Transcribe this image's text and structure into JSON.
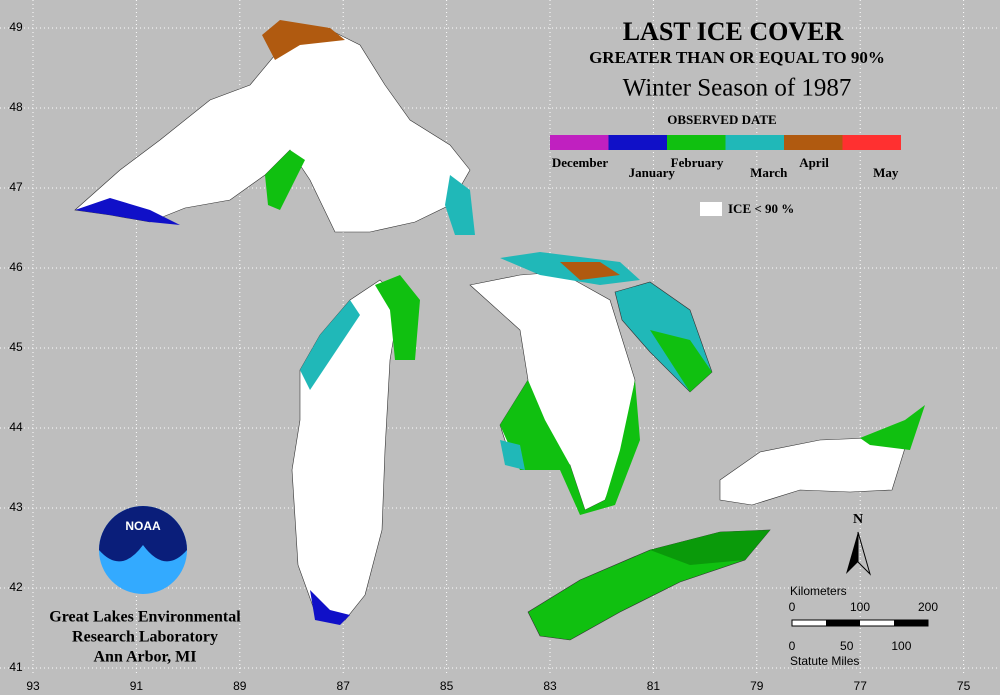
{
  "map": {
    "title": "LAST ICE COVER",
    "subtitle": "GREATER THAN OR EQUAL TO 90%",
    "season": "Winter Season of 1987",
    "legend_title": "OBSERVED DATE",
    "legend": [
      {
        "label": "December",
        "color": "#c020c0"
      },
      {
        "label": "January",
        "color": "#1010c8"
      },
      {
        "label": "February",
        "color": "#10c010"
      },
      {
        "label": "March",
        "color": "#20b8b8"
      },
      {
        "label": "April",
        "color": "#b05a10"
      },
      {
        "label": "May",
        "color": "#ff3030"
      }
    ],
    "no_ice_label": "ICE < 90 %",
    "latitudes": [
      49,
      48,
      47,
      46,
      45,
      44,
      43,
      42,
      41
    ],
    "longitudes": [
      93,
      91,
      89,
      87,
      85,
      83,
      81,
      79,
      77,
      75
    ],
    "north": "N",
    "scale": {
      "km_label": "Kilometers",
      "km_ticks": [
        0,
        100,
        200
      ],
      "mi_label": "Statute Miles",
      "mi_ticks": [
        0,
        50,
        100
      ]
    },
    "logo": "NOAA",
    "institution": [
      "Great Lakes Environmental",
      "Research Laboratory",
      "Ann Arbor, MI"
    ]
  }
}
